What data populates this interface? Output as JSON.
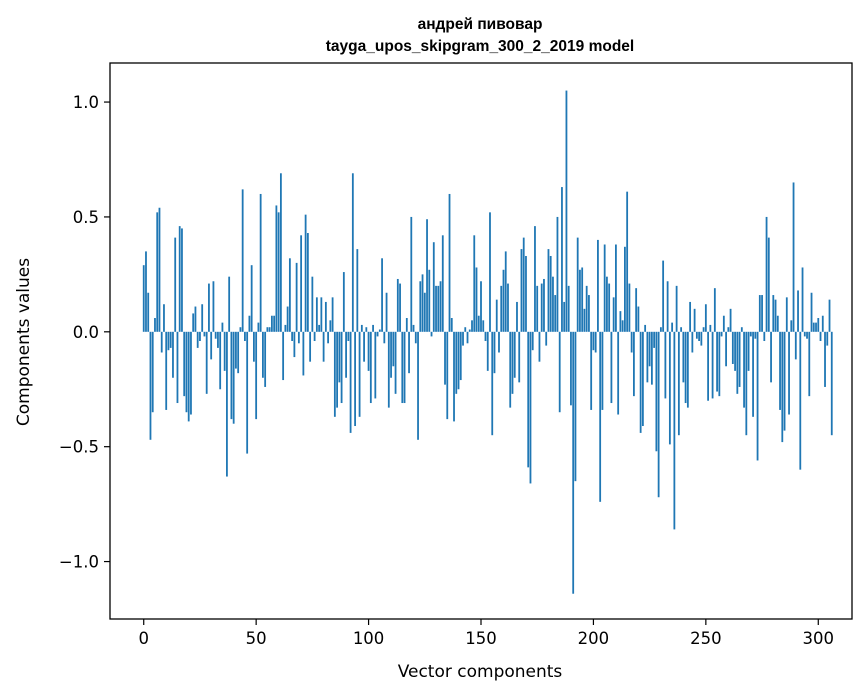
{
  "chart_data": {
    "type": "bar",
    "title_line1": "андрей пивовар",
    "title_line2": "tayga_upos_skipgram_300_2_2019 model",
    "xlabel": "Vector components",
    "ylabel": "Components values",
    "xlim": [
      -15,
      315
    ],
    "ylim": [
      -1.25,
      1.17
    ],
    "xticks": [
      0,
      50,
      100,
      150,
      200,
      250,
      300
    ],
    "xtick_labels": [
      "0",
      "50",
      "100",
      "150",
      "200",
      "250",
      "300"
    ],
    "yticks": [
      1.0,
      0.5,
      0.0,
      -0.5,
      -1.0
    ],
    "ytick_labels": [
      "1.0",
      "0.5",
      "0.0",
      "−0.5",
      "−1.0"
    ],
    "bar_color": "#1f77b4",
    "values": [
      0.29,
      0.35,
      0.17,
      -0.47,
      -0.35,
      0.06,
      0.52,
      0.54,
      -0.09,
      0.12,
      -0.34,
      -0.08,
      -0.07,
      -0.2,
      0.41,
      -0.31,
      0.46,
      0.45,
      -0.28,
      -0.35,
      -0.39,
      -0.36,
      0.08,
      0.11,
      -0.07,
      -0.04,
      0.12,
      -0.02,
      -0.27,
      0.21,
      -0.12,
      0.22,
      -0.03,
      -0.07,
      -0.25,
      0.04,
      -0.17,
      -0.63,
      0.24,
      -0.38,
      -0.4,
      -0.16,
      -0.18,
      0.02,
      0.62,
      -0.04,
      -0.53,
      0.07,
      0.29,
      -0.13,
      -0.38,
      0.04,
      0.6,
      -0.2,
      -0.24,
      0.02,
      0.02,
      0.07,
      0.07,
      0.55,
      0.52,
      0.69,
      -0.21,
      0.03,
      0.11,
      0.32,
      -0.04,
      -0.11,
      0.3,
      -0.05,
      0.42,
      -0.19,
      0.51,
      0.43,
      -0.13,
      0.24,
      -0.04,
      0.15,
      0.03,
      0.15,
      -0.13,
      0.13,
      -0.05,
      0.05,
      0.15,
      -0.37,
      -0.33,
      -0.22,
      -0.31,
      0.26,
      -0.2,
      -0.04,
      -0.44,
      0.69,
      -0.41,
      0.36,
      -0.37,
      0.03,
      -0.13,
      0.02,
      -0.17,
      -0.31,
      0.03,
      -0.29,
      -0.02,
      0.01,
      0.32,
      -0.05,
      0.17,
      -0.33,
      -0.2,
      -0.15,
      -0.27,
      0.23,
      0.21,
      -0.31,
      -0.31,
      0.06,
      -0.18,
      0.5,
      0.03,
      -0.05,
      -0.47,
      0.22,
      0.25,
      0.17,
      0.49,
      0.27,
      -0.02,
      0.39,
      0.2,
      0.2,
      0.22,
      0.42,
      -0.23,
      -0.38,
      0.6,
      0.06,
      -0.39,
      -0.27,
      -0.25,
      -0.21,
      -0.06,
      0.02,
      -0.05,
      0.01,
      0.05,
      0.42,
      0.28,
      0.07,
      0.22,
      0.05,
      -0.04,
      -0.17,
      0.52,
      -0.45,
      -0.18,
      0.14,
      -0.09,
      0.2,
      0.27,
      0.35,
      0.21,
      -0.33,
      -0.27,
      -0.2,
      0.13,
      -0.22,
      0.36,
      0.41,
      0.33,
      -0.59,
      -0.66,
      -0.08,
      0.46,
      0.2,
      -0.13,
      0.21,
      0.23,
      -0.06,
      0.36,
      0.33,
      0.24,
      0.16,
      0.5,
      -0.35,
      0.63,
      0.13,
      1.05,
      0.2,
      -0.32,
      -1.14,
      -0.65,
      0.41,
      0.27,
      0.28,
      0.1,
      0.2,
      0.16,
      -0.34,
      -0.08,
      -0.09,
      0.4,
      -0.74,
      -0.34,
      0.38,
      0.24,
      0.21,
      -0.31,
      0.15,
      0.38,
      -0.36,
      0.09,
      0.05,
      0.37,
      0.61,
      0.21,
      -0.09,
      -0.28,
      0.19,
      0.11,
      -0.44,
      -0.41,
      0.03,
      -0.22,
      -0.15,
      -0.23,
      -0.07,
      -0.52,
      -0.72,
      0.02,
      0.31,
      -0.29,
      0.22,
      -0.49,
      0.04,
      -0.86,
      0.2,
      -0.45,
      0.02,
      -0.22,
      -0.31,
      -0.33,
      0.13,
      -0.09,
      0.1,
      -0.03,
      -0.04,
      -0.06,
      0.02,
      0.12,
      -0.3,
      0.03,
      -0.29,
      0.19,
      -0.26,
      -0.28,
      -0.02,
      0.07,
      -0.15,
      0.02,
      0.1,
      -0.14,
      -0.17,
      -0.27,
      -0.24,
      0.02,
      -0.33,
      -0.45,
      -0.17,
      -0.02,
      -0.37,
      -0.03,
      -0.56,
      0.16,
      0.16,
      -0.04,
      0.5,
      0.41,
      -0.22,
      0.16,
      0.14,
      0.07,
      -0.34,
      -0.48,
      -0.43,
      0.15,
      -0.36,
      0.05,
      0.65,
      -0.12,
      0.18,
      -0.6,
      0.28,
      -0.02,
      -0.03,
      -0.28,
      0.17,
      0.04,
      0.04,
      0.06,
      -0.04,
      0.07,
      -0.24,
      -0.06,
      0.14,
      -0.45
    ]
  }
}
